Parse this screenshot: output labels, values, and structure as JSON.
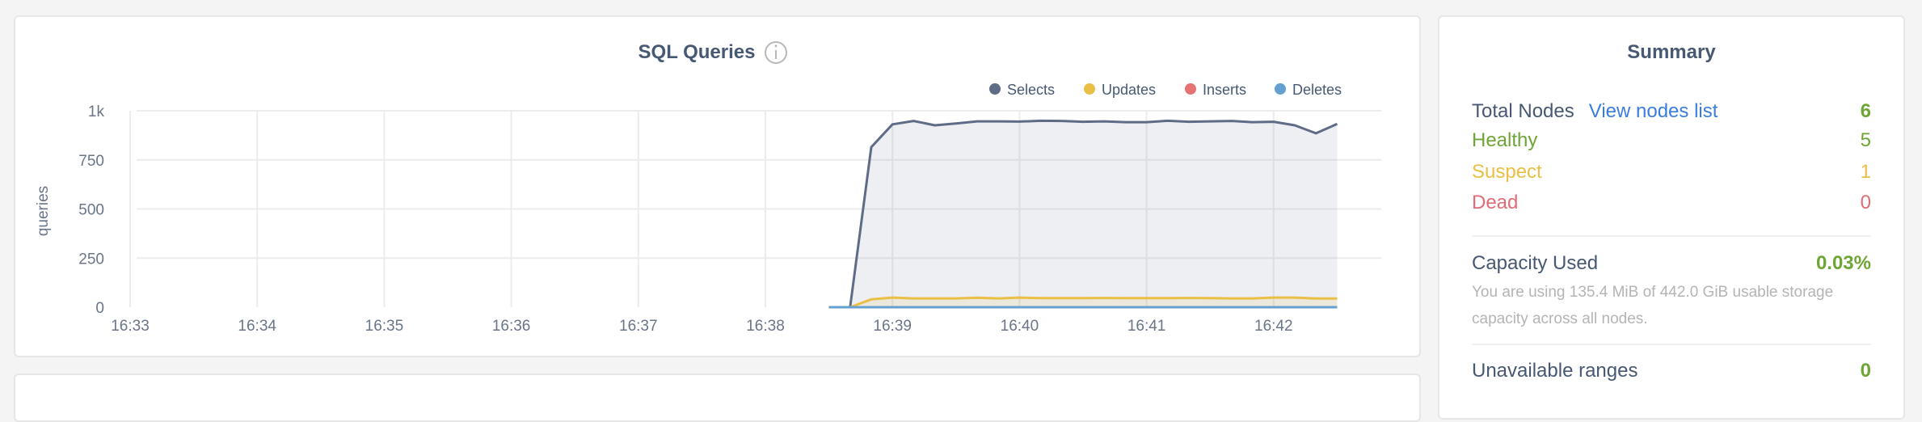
{
  "chart_data": {
    "type": "area",
    "title": "SQL Queries",
    "ylabel": "queries",
    "ylim": [
      0,
      1000
    ],
    "y_ticks": [
      "0",
      "250",
      "500",
      "750",
      "1k"
    ],
    "y_tick_values": [
      0,
      250,
      500,
      750,
      1000
    ],
    "x_ticks": [
      "16:33",
      "16:34",
      "16:35",
      "16:36",
      "16:37",
      "16:38",
      "16:39",
      "16:40",
      "16:41",
      "16:42"
    ],
    "x_range": [
      "16:33:00",
      "16:42:30"
    ],
    "grid": true,
    "legend_position": "top-right",
    "x": [
      "16:38:30",
      "16:38:40",
      "16:38:50",
      "16:39:00",
      "16:39:10",
      "16:39:20",
      "16:39:30",
      "16:39:40",
      "16:39:50",
      "16:40:00",
      "16:40:10",
      "16:40:20",
      "16:40:30",
      "16:40:40",
      "16:40:50",
      "16:41:00",
      "16:41:10",
      "16:41:20",
      "16:41:30",
      "16:41:40",
      "16:41:50",
      "16:42:00",
      "16:42:10",
      "16:42:20",
      "16:42:30"
    ],
    "series": [
      {
        "name": "Selects",
        "color": "#5f6c87",
        "values": [
          0,
          0,
          815,
          931,
          948,
          926,
          935,
          946,
          946,
          945,
          949,
          948,
          944,
          946,
          942,
          942,
          949,
          944,
          946,
          948,
          942,
          944,
          926,
          885,
          933
        ]
      },
      {
        "name": "Updates",
        "color": "#eabf45",
        "values": [
          0,
          0,
          40,
          49,
          45,
          45,
          45,
          48,
          45,
          49,
          46,
          46,
          46,
          47,
          46,
          46,
          46,
          47,
          46,
          45,
          45,
          49,
          49,
          44,
          44
        ]
      },
      {
        "name": "Inserts",
        "color": "#e57373",
        "values": [
          0,
          0,
          0,
          0,
          0,
          0,
          0,
          0,
          0,
          0,
          0,
          0,
          0,
          0,
          0,
          0,
          0,
          0,
          0,
          0,
          0,
          0,
          0,
          0,
          0
        ]
      },
      {
        "name": "Deletes",
        "color": "#64a0d0",
        "values": [
          0,
          0,
          0,
          0,
          0,
          0,
          0,
          0,
          0,
          0,
          0,
          0,
          0,
          0,
          0,
          0,
          0,
          0,
          0,
          0,
          0,
          0,
          0,
          0,
          0
        ]
      }
    ]
  },
  "chart_info_icon": "info-icon",
  "summary": {
    "title": "Summary",
    "total_nodes_label": "Total Nodes",
    "view_nodes_link": "View nodes list",
    "total_nodes": "6",
    "healthy_label": "Healthy",
    "healthy": "5",
    "suspect_label": "Suspect",
    "suspect": "1",
    "dead_label": "Dead",
    "dead": "0",
    "capacity_label": "Capacity Used",
    "capacity_value": "0.03%",
    "capacity_desc": "You are using 135.4 MiB of 442.0 GiB usable storage capacity across all nodes.",
    "unavailable_label": "Unavailable ranges",
    "unavailable": "0",
    "colors": {
      "text": "#475872",
      "green": "#6ea635",
      "yellow": "#eabf45",
      "red": "#e06c75",
      "link": "#3a7de1"
    }
  }
}
